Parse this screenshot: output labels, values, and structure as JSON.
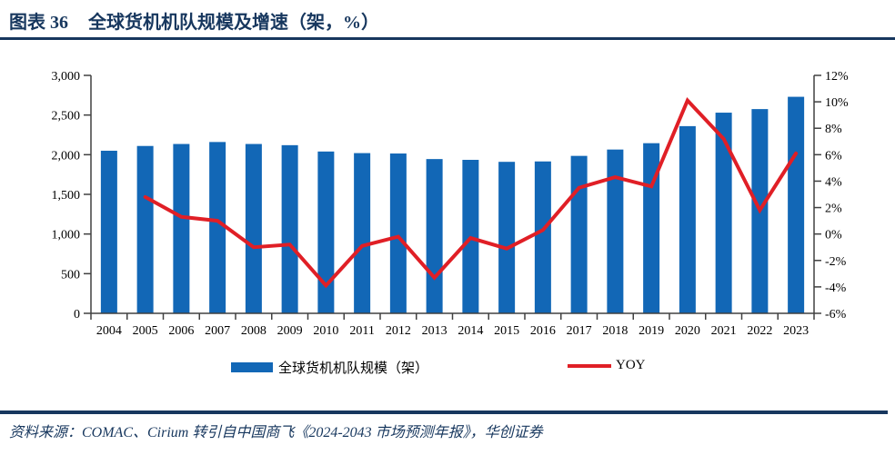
{
  "header": {
    "figure_label": "图表 36",
    "title": "全球货机机队规模及增速（架，%）"
  },
  "chart_data": {
    "type": "bar+line",
    "title": "全球货机机队规模及增速（架，%）",
    "categories": [
      "2004",
      "2005",
      "2006",
      "2007",
      "2008",
      "2009",
      "2010",
      "2011",
      "2012",
      "2013",
      "2014",
      "2015",
      "2016",
      "2017",
      "2018",
      "2019",
      "2020",
      "2021",
      "2022",
      "2023"
    ],
    "series": [
      {
        "name": "全球货机机队规模（架）",
        "type": "bar",
        "axis": "left",
        "values": [
          2050,
          2110,
          2135,
          2160,
          2135,
          2120,
          2040,
          2020,
          2015,
          1945,
          1935,
          1910,
          1915,
          1985,
          2065,
          2145,
          2360,
          2530,
          2575,
          2730
        ]
      },
      {
        "name": "YOY",
        "type": "line",
        "axis": "right",
        "values": [
          null,
          2.8,
          1.3,
          1.0,
          -1.0,
          -0.8,
          -3.9,
          -0.9,
          -0.2,
          -3.3,
          -0.3,
          -1.1,
          0.3,
          3.5,
          4.3,
          3.6,
          10.1,
          7.2,
          1.8,
          6.1
        ]
      }
    ],
    "left_axis": {
      "min": 0,
      "max": 3000,
      "tick_step": 500,
      "tick_labels": [
        "0",
        "500",
        "1,000",
        "1,500",
        "2,000",
        "2,500",
        "3,000"
      ]
    },
    "right_axis": {
      "min": -6,
      "max": 12,
      "tick_step": 2,
      "tick_labels": [
        "-6%",
        "-4%",
        "-2%",
        "0%",
        "2%",
        "4%",
        "6%",
        "8%",
        "10%",
        "12%"
      ]
    },
    "grid": false,
    "legend_position": "bottom"
  },
  "legend": {
    "bar_label": "全球货机机队规模（架）",
    "line_label": "YOY"
  },
  "footer": {
    "source": "资料来源：COMAC、Cirium 转引自中国商飞《2024-2043 市场预测年报》，华创证券"
  },
  "colors": {
    "bar": "#1267B6",
    "line": "#E01F26",
    "navy": "#17375E",
    "axis": "#404040",
    "text": "#000000"
  }
}
